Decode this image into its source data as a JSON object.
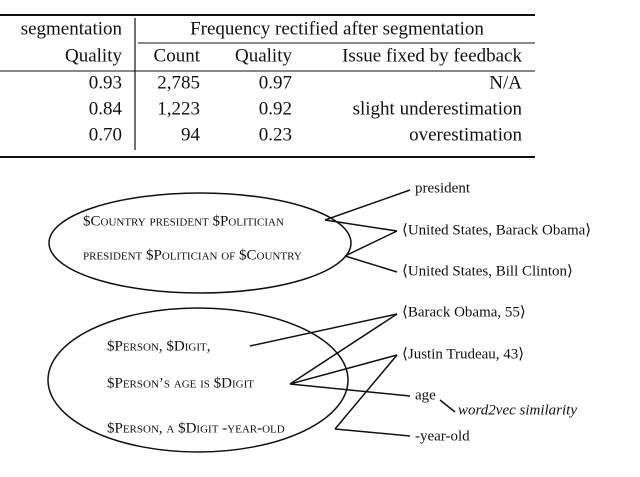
{
  "table": {
    "header_top": [
      "segmentation",
      "Frequency rectified after segmentation"
    ],
    "header": [
      "Quality",
      "Count",
      "Quality",
      "Issue fixed by feedback"
    ],
    "rows": [
      [
        "0.93",
        "2,785",
        "0.97",
        "N/A"
      ],
      [
        "0.84",
        "1,223",
        "0.92",
        "slight underestimation"
      ],
      [
        "0.70",
        "94",
        "0.23",
        "overestimation"
      ]
    ]
  },
  "diagram": {
    "patterns": [
      "$Country president $Politician",
      "president $Politician of $Country",
      "$Person, $Digit,",
      "$Person’s age is $Digit",
      "$Person, a $Digit -year-old"
    ],
    "targets": [
      "president",
      "⟨United States, Barack Obama⟩",
      "⟨United States, Bill Clinton⟩",
      "⟨Barack Obama, 55⟩",
      "⟨Justin Trudeau, 43⟩",
      "age",
      "-year-old"
    ],
    "note": "word2vec similarity"
  }
}
